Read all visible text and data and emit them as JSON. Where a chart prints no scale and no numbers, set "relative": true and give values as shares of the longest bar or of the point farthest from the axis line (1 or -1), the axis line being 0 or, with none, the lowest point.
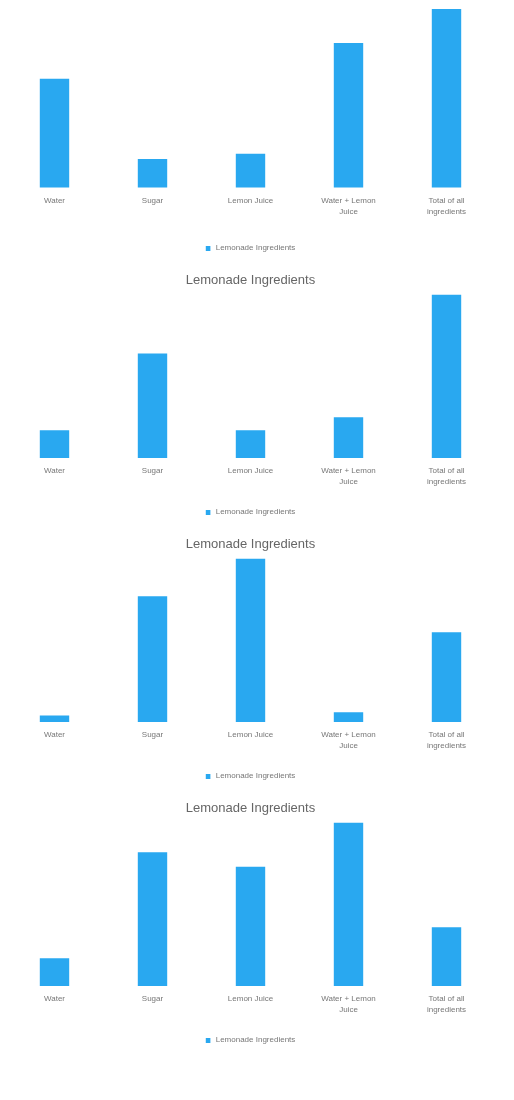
{
  "chart_data": [
    {
      "type": "bar",
      "relative": true,
      "categories": [
        "Water",
        "Sugar",
        "Lemon Juice",
        "Water + Lemon Juice",
        "Total of all ingredients"
      ],
      "series": [
        {
          "name": "Lemonade Ingredients",
          "color": "#29a8f0",
          "values": [
            0.61,
            0.16,
            0.19,
            0.81,
            1
          ]
        }
      ],
      "legend": "bottom",
      "grid": false
    },
    {
      "type": "bar",
      "relative": true,
      "title": "Lemonade Ingredients",
      "categories": [
        "Water",
        "Sugar",
        "Lemon Juice",
        "Water + Lemon Juice",
        "Total of all ingredients"
      ],
      "series": [
        {
          "name": "Lemonade Ingredients",
          "color": "#29a8f0",
          "values": [
            0.17,
            0.64,
            0.17,
            0.25,
            1
          ]
        }
      ],
      "legend": "bottom",
      "grid": false
    },
    {
      "type": "bar",
      "relative": true,
      "title": "Lemonade Ingredients",
      "categories": [
        "Water",
        "Sugar",
        "Lemon Juice",
        "Water + Lemon Juice",
        "Total of all ingredients"
      ],
      "series": [
        {
          "name": "Lemonade Ingredients",
          "color": "#29a8f0",
          "values": [
            0.04,
            0.77,
            1,
            0.06,
            0.55
          ]
        }
      ],
      "legend": "bottom",
      "grid": false
    },
    {
      "type": "bar",
      "relative": true,
      "title": "Lemonade Ingredients",
      "categories": [
        "Water",
        "Sugar",
        "Lemon Juice",
        "Water + Lemon Juice",
        "Total of all ingredients"
      ],
      "series": [
        {
          "name": "Lemonade Ingredients",
          "color": "#29a8f0",
          "values": [
            0.17,
            0.82,
            0.73,
            1,
            0.36
          ]
        }
      ],
      "legend": "bottom",
      "grid": false
    }
  ]
}
